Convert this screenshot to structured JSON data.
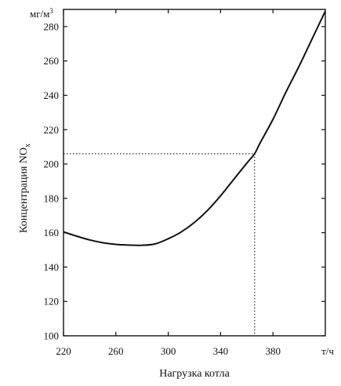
{
  "chart_data": {
    "type": "line",
    "title": "",
    "xlabel": "Нагрузка котла",
    "ylabel": "Концентрация NO",
    "ylabel_subscript": "x",
    "x_unit": "т/ч",
    "y_unit": "мг/м",
    "y_unit_superscript": "3",
    "xlim": [
      220,
      420
    ],
    "ylim": [
      100,
      290
    ],
    "x_ticks": [
      220,
      260,
      300,
      340,
      380
    ],
    "y_ticks": [
      100,
      120,
      140,
      160,
      180,
      200,
      220,
      240,
      260,
      280
    ],
    "grid": false,
    "series": [
      {
        "x": [
          220,
          230,
          240,
          250,
          260,
          270,
          280,
          290,
          300,
          310,
          320,
          330,
          340,
          350,
          360,
          366,
          370,
          380,
          390,
          400,
          410,
          420
        ],
        "y": [
          160.5,
          158.0,
          155.8,
          154.2,
          153.2,
          152.8,
          152.7,
          153.5,
          156.5,
          160.5,
          166.0,
          173.0,
          181.5,
          191.0,
          200.5,
          206.0,
          212.0,
          226.0,
          242.0,
          257.0,
          273.0,
          289.0
        ]
      }
    ],
    "annotations": [
      {
        "type": "guide",
        "x": 366,
        "y": 206
      }
    ]
  }
}
